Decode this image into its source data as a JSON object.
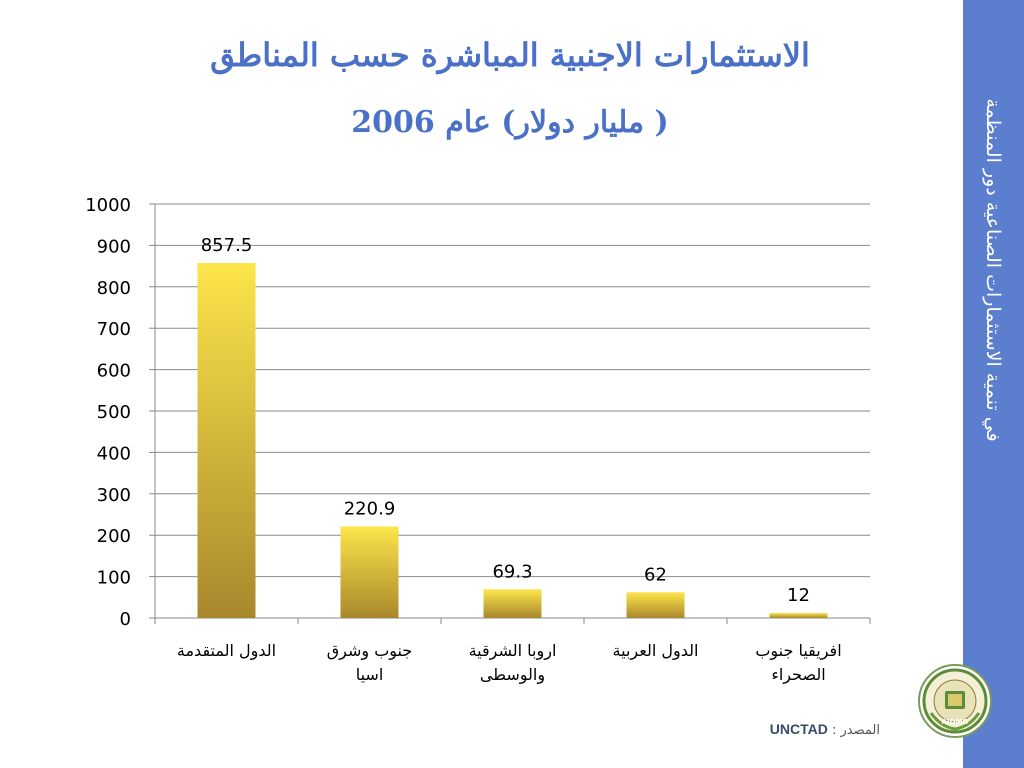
{
  "slide": {
    "title_line1": "الاستثمارات الاجنبية المباشرة حسب المناطق",
    "title_line2": "( مليار دولار) عام 2006",
    "side_text": "في تنمية الاستثمارات الصناعية دور المنظمة",
    "source_label": "المصدر :",
    "source_org": "UNCTAD"
  },
  "colors": {
    "sidebar": "#5c7ecf",
    "title": "#4a70c8",
    "bar_top": "#fde54a",
    "bar_bottom": "#a8882c"
  },
  "logo": {
    "lettering": "AIDMO"
  },
  "chart_data": {
    "type": "bar",
    "categories": [
      [
        "الدول المتقدمة"
      ],
      [
        "جنوب وشرق",
        "اسيا"
      ],
      [
        "اروبا الشرقية",
        "والوسطى"
      ],
      [
        "الدول العربية"
      ],
      [
        "افريقيا جنوب",
        "الصحراء"
      ]
    ],
    "values": [
      857.5,
      220.9,
      69.3,
      62,
      12
    ],
    "data_labels": [
      "857.5",
      "220.9",
      "69.3",
      "62",
      "12"
    ],
    "ylim": [
      0,
      1000
    ],
    "yticks": [
      0,
      100,
      200,
      300,
      400,
      500,
      600,
      700,
      800,
      900,
      1000
    ],
    "grid": true,
    "legend": "none"
  }
}
